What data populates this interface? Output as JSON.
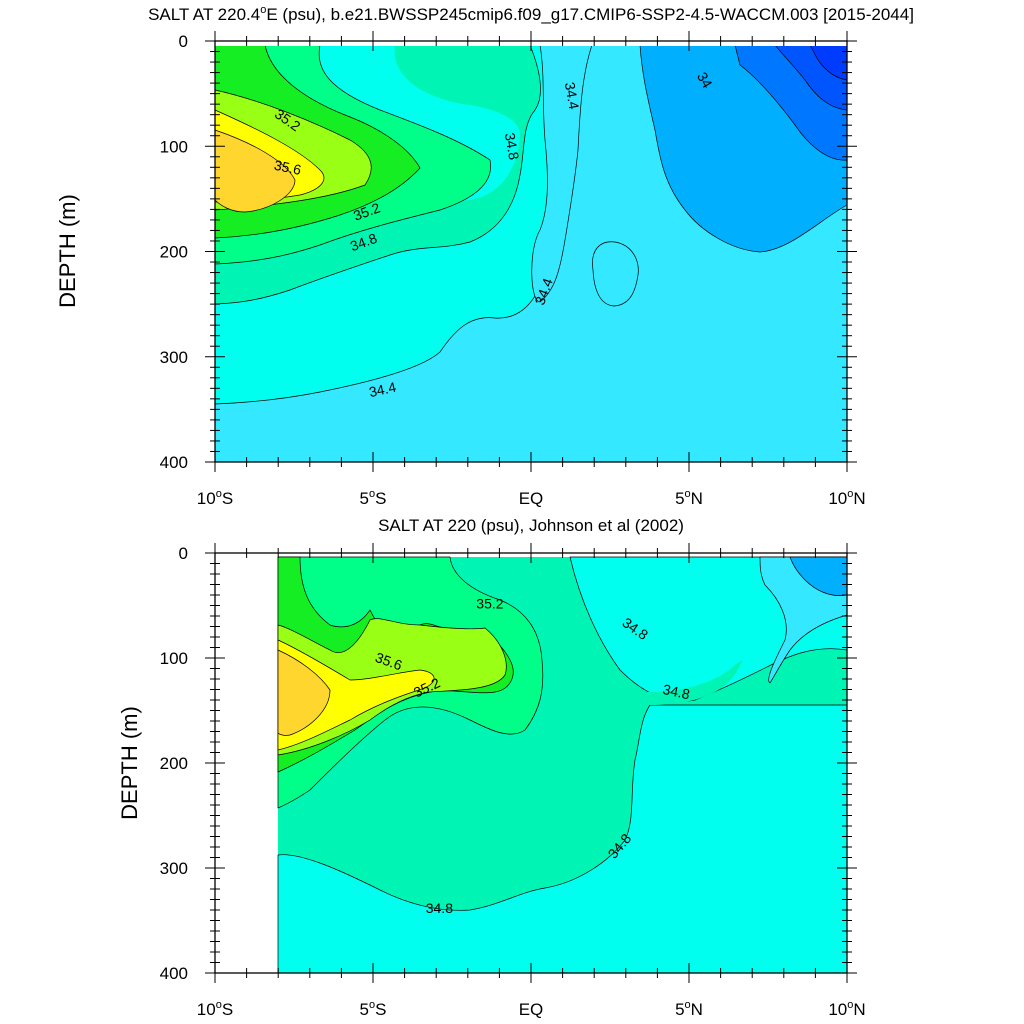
{
  "chart_data": [
    {
      "type": "heatmap",
      "subtype": "filled-contour",
      "title": "SALT AT 220.4°E (psu), b.e21.BWSSP245cmip6.f09_g17.CMIP6-SSP2-4.5-WACCM.003 [2015-2044]",
      "title_parts": {
        "main": "SALT AT 220.4",
        "sup": "o",
        "rest": "E (psu), b.e21.BWSSP245cmip6.f09_g17.CMIP6-SSP2-4.5-WACCM.003 [2015-2044]"
      },
      "xlabel": "",
      "ylabel": "DEPTH (m)",
      "xlim": [
        -10,
        10
      ],
      "ylim": [
        400,
        0
      ],
      "x_ticks": [
        {
          "value": -10,
          "label": "10",
          "sup": "o",
          "suffix": "S"
        },
        {
          "value": -5,
          "label": "5",
          "sup": "o",
          "suffix": "S"
        },
        {
          "value": 0,
          "label": "EQ",
          "sup": "",
          "suffix": ""
        },
        {
          "value": 5,
          "label": "5",
          "sup": "o",
          "suffix": "N"
        },
        {
          "value": 10,
          "label": "10",
          "sup": "o",
          "suffix": "N"
        }
      ],
      "y_ticks": [
        0,
        100,
        200,
        300,
        400
      ],
      "data_x_range": [
        -10,
        10
      ],
      "contour_interval": 0.2,
      "contour_labels": [
        {
          "text": "35.2",
          "x": -7.7,
          "y": 75,
          "angle": 35
        },
        {
          "text": "35.6",
          "x": -7.7,
          "y": 120,
          "angle": 12
        },
        {
          "text": "35.2",
          "x": -5.2,
          "y": 162,
          "angle": -20
        },
        {
          "text": "34.8",
          "x": -5.3,
          "y": 191,
          "angle": -20
        },
        {
          "text": "34.8",
          "x": -0.6,
          "y": 100,
          "angle": 80
        },
        {
          "text": "34.4",
          "x": 1.3,
          "y": 52,
          "angle": 80
        },
        {
          "text": "34",
          "x": 5.5,
          "y": 37,
          "angle": 60
        },
        {
          "text": "34.4",
          "x": 0.4,
          "y": 238,
          "angle": -70
        },
        {
          "text": "34.4",
          "x": -4.7,
          "y": 331,
          "angle": -12
        }
      ],
      "grid": false,
      "legend": "none"
    },
    {
      "type": "heatmap",
      "subtype": "filled-contour",
      "title": "SALT AT 220 (psu), Johnson et al (2002)",
      "title_parts": {
        "main": "SALT AT 220 (psu), Johnson et al (2002)",
        "sup": "",
        "rest": ""
      },
      "xlabel": "",
      "ylabel": "DEPTH (m)",
      "xlim": [
        -10,
        10
      ],
      "ylim": [
        400,
        0
      ],
      "x_ticks": [
        {
          "value": -10,
          "label": "10",
          "sup": "o",
          "suffix": "S"
        },
        {
          "value": -5,
          "label": "5",
          "sup": "o",
          "suffix": "S"
        },
        {
          "value": 0,
          "label": "EQ",
          "sup": "",
          "suffix": ""
        },
        {
          "value": 5,
          "label": "5",
          "sup": "o",
          "suffix": "N"
        },
        {
          "value": 10,
          "label": "10",
          "sup": "o",
          "suffix": "N"
        }
      ],
      "y_ticks": [
        0,
        100,
        200,
        300,
        400
      ],
      "data_x_range": [
        -8,
        10
      ],
      "contour_interval": 0.2,
      "contour_labels": [
        {
          "text": "35.2",
          "x": -1.3,
          "y": 48,
          "angle": 0
        },
        {
          "text": "35.6",
          "x": -4.5,
          "y": 103,
          "angle": 20
        },
        {
          "text": "35.2",
          "x": -3.3,
          "y": 128,
          "angle": -25
        },
        {
          "text": "34.8",
          "x": 3.3,
          "y": 72,
          "angle": 35
        },
        {
          "text": "34.8",
          "x": 4.6,
          "y": 132,
          "angle": 12
        },
        {
          "text": "34.8",
          "x": 2.8,
          "y": 279,
          "angle": -50
        },
        {
          "text": "34.8",
          "x": -2.9,
          "y": 338,
          "angle": 0
        }
      ],
      "grid": false,
      "legend": "none"
    }
  ],
  "palette": {
    "s34_0": "#003cff",
    "s34_2": "#0077ff",
    "s34_4": "#00b0ff",
    "s34_6": "#33e8ff",
    "s34_8": "#00ffee",
    "s35_0": "#00f5b5",
    "s35_2": "#00ff88",
    "s35_4": "#14ee22",
    "s35_6": "#99ff14",
    "s35_8": "#ffff00",
    "s36_0": "#ffd62e",
    "line": "#000000"
  }
}
